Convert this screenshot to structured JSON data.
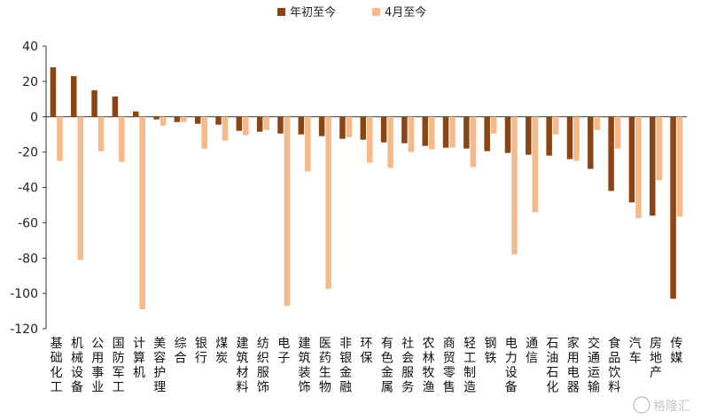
{
  "chart_data": {
    "type": "bar",
    "title": "",
    "xlabel": "",
    "ylabel": "",
    "ylim": [
      -120,
      40
    ],
    "yticks": [
      40,
      20,
      0,
      -20,
      -40,
      -60,
      -80,
      -100,
      -120
    ],
    "grid": false,
    "legend_position": "top-center",
    "categories": [
      "基础化工",
      "机械设备",
      "公用事业",
      "国防军工",
      "计算机",
      "美容护理",
      "综合",
      "银行",
      "煤炭",
      "建筑材料",
      "纺织服饰",
      "电子",
      "建筑装饰",
      "医药生物",
      "非银金融",
      "环保",
      "有色金属",
      "社会服务",
      "农林牧渔",
      "商贸零售",
      "轻工制造",
      "钢铁",
      "电力设备",
      "通信",
      "石油石化",
      "家用电器",
      "交通运输",
      "食品饮料",
      "汽车",
      "房地产",
      "传媒"
    ],
    "series": [
      {
        "name": "年初至今",
        "color": "#8B4513",
        "values": [
          28,
          23,
          15,
          11.5,
          3,
          -1.5,
          -3,
          -4,
          -4.5,
          -8,
          -8.5,
          -9.5,
          -10,
          -11,
          -12.5,
          -13,
          -14.5,
          -15,
          -16.5,
          -17.5,
          -18,
          -19.5,
          -20.5,
          -21.5,
          -22,
          -24,
          -29.5,
          -42,
          -48.5,
          -56,
          -103
        ]
      },
      {
        "name": "4月至今",
        "color": "#F5B98A",
        "values": [
          -25,
          -81,
          -19.5,
          -25.5,
          -109,
          -5,
          -3,
          -18,
          -13.5,
          -10.5,
          -7.5,
          -107,
          -31,
          -97.5,
          -11.5,
          -26,
          -29,
          -20,
          -18.5,
          -17.5,
          -28.5,
          -9.5,
          -78,
          -54,
          -10,
          -25,
          -7.5,
          -18,
          -57.5,
          -36,
          -56.5
        ]
      }
    ]
  },
  "watermark": {
    "text": "格隆汇"
  }
}
